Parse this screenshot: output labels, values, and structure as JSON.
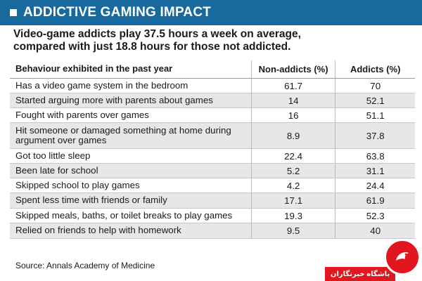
{
  "header": {
    "title": "ADDICTIVE GAMING IMPACT",
    "square_icon": "square-bullet-icon"
  },
  "subtitle": {
    "line1": "Video-game addicts play 37.5 hours a week on average,",
    "line2": "compared with just 18.8 hours for those not addicted."
  },
  "chart_data": {
    "type": "table",
    "columns": [
      "Behaviour exhibited in the past year",
      "Non-addicts (%)",
      "Addicts (%)"
    ],
    "rows": [
      {
        "behaviour": "Has a video game system in the bedroom",
        "non_addicts": "61.7",
        "addicts": "70"
      },
      {
        "behaviour": "Started arguing more with parents about games",
        "non_addicts": "14",
        "addicts": "52.1"
      },
      {
        "behaviour": "Fought with parents over games",
        "non_addicts": "16",
        "addicts": "51.1"
      },
      {
        "behaviour": "Hit someone or damaged something at home during argument over games",
        "non_addicts": "8.9",
        "addicts": "37.8"
      },
      {
        "behaviour": "Got too little sleep",
        "non_addicts": "22.4",
        "addicts": "63.8"
      },
      {
        "behaviour": "Been late for school",
        "non_addicts": "5.2",
        "addicts": "31.1"
      },
      {
        "behaviour": "Skipped school to play games",
        "non_addicts": "4.2",
        "addicts": "24.4"
      },
      {
        "behaviour": "Spent less time with friends or family",
        "non_addicts": "17.1",
        "addicts": "61.9"
      },
      {
        "behaviour": "Skipped meals, baths, or toilet breaks to play games",
        "non_addicts": "19.3",
        "addicts": "52.3"
      },
      {
        "behaviour": "Relied on friends to help with homework",
        "non_addicts": "9.5",
        "addicts": "40"
      }
    ]
  },
  "source": "Source: Annals Academy of Medicine",
  "watermark": {
    "text": "باشگاه خبرنگاران",
    "icon": "bird-logo-icon"
  },
  "colors": {
    "banner": "#17699e",
    "row_alt": "#e7e7e9",
    "logo_red": "#e2161e"
  }
}
